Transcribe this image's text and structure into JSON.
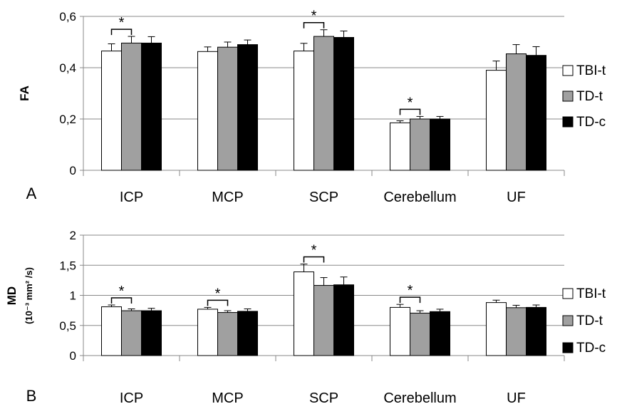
{
  "chart_data": [
    {
      "panel_label": "A",
      "type": "bar",
      "ylabel": "FA",
      "ylabel_sub": "",
      "ylim": [
        0,
        0.6
      ],
      "yticks": [
        "0",
        "0,2",
        "0,4",
        "0,6"
      ],
      "yticks_values": [
        0,
        0.2,
        0.4,
        0.6
      ],
      "grid": true,
      "legend_position": "right",
      "categories": [
        "ICP",
        "MCP",
        "SCP",
        "Cerebellum",
        "UF"
      ],
      "series": [
        {
          "name": "TBI-t",
          "color": "#ffffff",
          "values": [
            0.465,
            0.463,
            0.465,
            0.185,
            0.39
          ],
          "errors": [
            0.028,
            0.018,
            0.03,
            0.008,
            0.036
          ]
        },
        {
          "name": "TD-t",
          "color": "#a0a0a0",
          "values": [
            0.496,
            0.48,
            0.522,
            0.2,
            0.454
          ],
          "errors": [
            0.026,
            0.02,
            0.026,
            0.01,
            0.036
          ]
        },
        {
          "name": "TD-c",
          "color": "#000000",
          "values": [
            0.496,
            0.49,
            0.518,
            0.2,
            0.448
          ],
          "errors": [
            0.025,
            0.018,
            0.025,
            0.01,
            0.034
          ]
        }
      ],
      "significance": [
        {
          "category": "ICP",
          "label": "*"
        },
        {
          "category": "SCP",
          "label": "*"
        },
        {
          "category": "Cerebellum",
          "label": "*"
        }
      ]
    },
    {
      "panel_label": "B",
      "type": "bar",
      "ylabel": "MD",
      "ylabel_sub": "(10⁻³ mm² /s)",
      "ylim": [
        0,
        2
      ],
      "yticks": [
        "0",
        "0,5",
        "1",
        "1,5",
        "2"
      ],
      "yticks_values": [
        0,
        0.5,
        1,
        1.5,
        2
      ],
      "grid": true,
      "legend_position": "right",
      "categories": [
        "ICP",
        "MCP",
        "SCP",
        "Cerebellum",
        "UF"
      ],
      "series": [
        {
          "name": "TBI-t",
          "color": "#ffffff",
          "values": [
            0.81,
            0.77,
            1.39,
            0.8,
            0.88
          ],
          "errors": [
            0.03,
            0.03,
            0.13,
            0.05,
            0.04
          ]
        },
        {
          "name": "TD-t",
          "color": "#a0a0a0",
          "values": [
            0.745,
            0.715,
            1.165,
            0.705,
            0.795
          ],
          "errors": [
            0.03,
            0.03,
            0.13,
            0.04,
            0.04
          ]
        },
        {
          "name": "TD-c",
          "color": "#000000",
          "values": [
            0.745,
            0.735,
            1.175,
            0.73,
            0.8
          ],
          "errors": [
            0.04,
            0.04,
            0.13,
            0.04,
            0.04
          ]
        }
      ],
      "significance": [
        {
          "category": "ICP",
          "label": "*"
        },
        {
          "category": "MCP",
          "label": "*"
        },
        {
          "category": "SCP",
          "label": "*"
        },
        {
          "category": "Cerebellum",
          "label": "*"
        }
      ]
    }
  ]
}
